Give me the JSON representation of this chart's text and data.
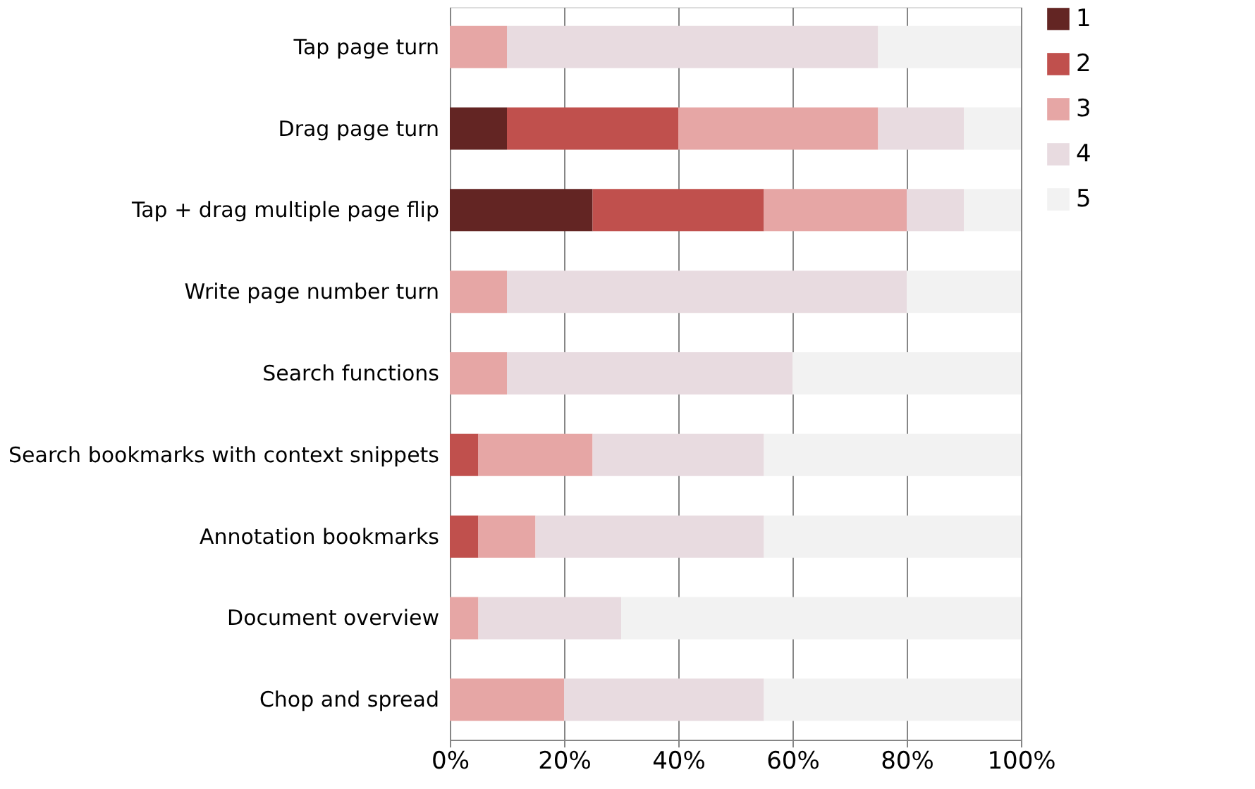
{
  "chart_data": {
    "type": "bar",
    "orientation": "horizontal",
    "stacked": true,
    "categories": [
      "Tap page turn",
      "Drag page turn",
      "Tap + drag multiple page flip",
      "Write page number turn",
      "Search functions",
      "Search bookmarks with context snippets",
      "Annotation bookmarks",
      "Document overview",
      "Chop and spread"
    ],
    "series": [
      {
        "name": "1",
        "color": "#632523",
        "values": [
          0,
          10,
          25,
          0,
          0,
          0,
          0,
          0,
          0
        ]
      },
      {
        "name": "2",
        "color": "#c0504d",
        "values": [
          0,
          30,
          30,
          0,
          0,
          5,
          5,
          0,
          0
        ]
      },
      {
        "name": "3",
        "color": "#e6a6a5",
        "values": [
          10,
          35,
          25,
          10,
          10,
          20,
          10,
          5,
          20
        ]
      },
      {
        "name": "4",
        "color": "#e8dbe0",
        "values": [
          65,
          15,
          10,
          70,
          50,
          30,
          40,
          25,
          35
        ]
      },
      {
        "name": "5",
        "color": "#f2f2f2",
        "values": [
          25,
          10,
          10,
          20,
          40,
          45,
          45,
          70,
          45
        ]
      }
    ],
    "xlim": [
      0,
      100
    ],
    "xticks": [
      {
        "value": 0,
        "label": "0%"
      },
      {
        "value": 20,
        "label": "20%"
      },
      {
        "value": 40,
        "label": "40%"
      },
      {
        "value": 60,
        "label": "60%"
      },
      {
        "value": 80,
        "label": "80%"
      },
      {
        "value": 100,
        "label": "100%"
      }
    ],
    "grid": "x",
    "legend": "right"
  }
}
